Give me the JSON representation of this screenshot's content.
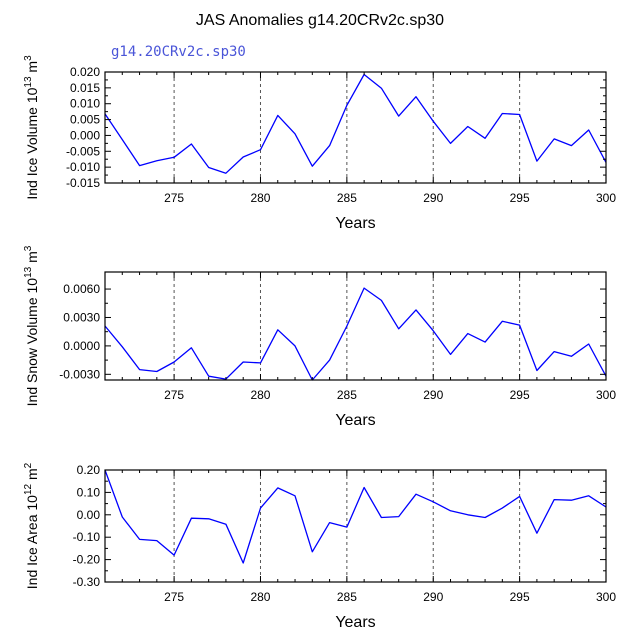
{
  "title": "JAS Anomalies g14.20CRv2c.sp30",
  "subtitle": "g14.20CRv2c.sp30",
  "colors": {
    "line": "#0000ff",
    "subtitle": "#4a55d8",
    "axis": "#000000",
    "refline": "#555555"
  },
  "chart_data": [
    {
      "type": "line",
      "name": "ice-volume",
      "xlabel": "Years",
      "ylabel": "Ind Ice Volume 10",
      "ylabel_exp": "13",
      "ylabel_unit": " m",
      "ylabel_unit_exp": "3",
      "xlim": [
        271,
        300
      ],
      "ylim": [
        -0.015,
        0.02
      ],
      "xticks": [
        275,
        280,
        285,
        290,
        295,
        300
      ],
      "yticks": [
        -0.015,
        -0.01,
        -0.005,
        0.0,
        0.005,
        0.01,
        0.015,
        0.02
      ],
      "ytick_labels": [
        "-0.015",
        "-0.010",
        "-0.005",
        "0.000",
        "0.005",
        "0.010",
        "0.015",
        "0.020"
      ],
      "x": [
        271,
        272,
        273,
        274,
        275,
        276,
        277,
        278,
        279,
        280,
        281,
        282,
        283,
        284,
        285,
        286,
        287,
        288,
        289,
        290,
        291,
        292,
        293,
        294,
        295,
        296,
        297,
        298,
        299,
        300
      ],
      "values": [
        0.0068,
        -0.0013,
        -0.0095,
        -0.008,
        -0.0069,
        -0.0027,
        -0.0101,
        -0.0119,
        -0.0068,
        -0.0045,
        0.0063,
        0.0005,
        -0.0097,
        -0.0032,
        0.0095,
        0.0192,
        0.0149,
        0.0061,
        0.0122,
        0.0045,
        -0.0025,
        0.0028,
        -0.0009,
        0.0069,
        0.0066,
        -0.0081,
        -0.0011,
        -0.0032,
        0.0017,
        -0.0085
      ],
      "refline_x": [
        275,
        280,
        285,
        290,
        295
      ]
    },
    {
      "type": "line",
      "name": "snow-volume",
      "xlabel": "Years",
      "ylabel": "Ind Snow Volume 10",
      "ylabel_exp": "13",
      "ylabel_unit": " m",
      "ylabel_unit_exp": "3",
      "xlim": [
        271,
        300
      ],
      "ylim": [
        -0.0036,
        0.0078
      ],
      "xticks": [
        275,
        280,
        285,
        290,
        295,
        300
      ],
      "yticks": [
        -0.003,
        0.0,
        0.003,
        0.006
      ],
      "ytick_labels": [
        "-0.0030",
        "0.0000",
        "0.0030",
        "0.0060"
      ],
      "x": [
        271,
        272,
        273,
        274,
        275,
        276,
        277,
        278,
        279,
        280,
        281,
        282,
        283,
        284,
        285,
        286,
        287,
        288,
        289,
        290,
        291,
        292,
        293,
        294,
        295,
        296,
        297,
        298,
        299,
        300
      ],
      "values": [
        0.0021,
        -0.0001,
        -0.0025,
        -0.0027,
        -0.0017,
        -0.0002,
        -0.0032,
        -0.0035,
        -0.0017,
        -0.0018,
        0.0017,
        0.0,
        -0.0036,
        -0.0015,
        0.0021,
        0.0061,
        0.0048,
        0.0018,
        0.0038,
        0.0016,
        -0.0009,
        0.0013,
        0.0004,
        0.0026,
        0.0022,
        -0.0026,
        -0.0006,
        -0.0011,
        0.0002,
        -0.0032
      ],
      "refline_x": [
        275,
        280,
        285,
        290,
        295
      ]
    },
    {
      "type": "line",
      "name": "ice-area",
      "xlabel": "Years",
      "ylabel": "Ind Ice Area 10",
      "ylabel_exp": "12",
      "ylabel_unit": " m",
      "ylabel_unit_exp": "2",
      "xlim": [
        271,
        300
      ],
      "ylim": [
        -0.3,
        0.2
      ],
      "xticks": [
        275,
        280,
        285,
        290,
        295,
        300
      ],
      "yticks": [
        -0.3,
        -0.2,
        -0.1,
        0.0,
        0.1,
        0.2
      ],
      "ytick_labels": [
        "-0.30",
        "-0.20",
        "-0.10",
        "0.00",
        "0.10",
        "0.20"
      ],
      "x": [
        271,
        272,
        273,
        274,
        275,
        276,
        277,
        278,
        279,
        280,
        281,
        282,
        283,
        284,
        285,
        286,
        287,
        288,
        289,
        290,
        291,
        292,
        293,
        294,
        295,
        296,
        297,
        298,
        299,
        300
      ],
      "values": [
        0.2,
        -0.01,
        -0.11,
        -0.115,
        -0.18,
        -0.015,
        -0.018,
        -0.042,
        -0.215,
        0.03,
        0.12,
        0.085,
        -0.165,
        -0.035,
        -0.055,
        0.122,
        -0.012,
        -0.008,
        0.092,
        0.058,
        0.018,
        0.0,
        -0.012,
        0.03,
        0.082,
        -0.082,
        0.068,
        0.065,
        0.085,
        0.035
      ],
      "refline_x": [
        275,
        280,
        285,
        290,
        295
      ]
    }
  ]
}
